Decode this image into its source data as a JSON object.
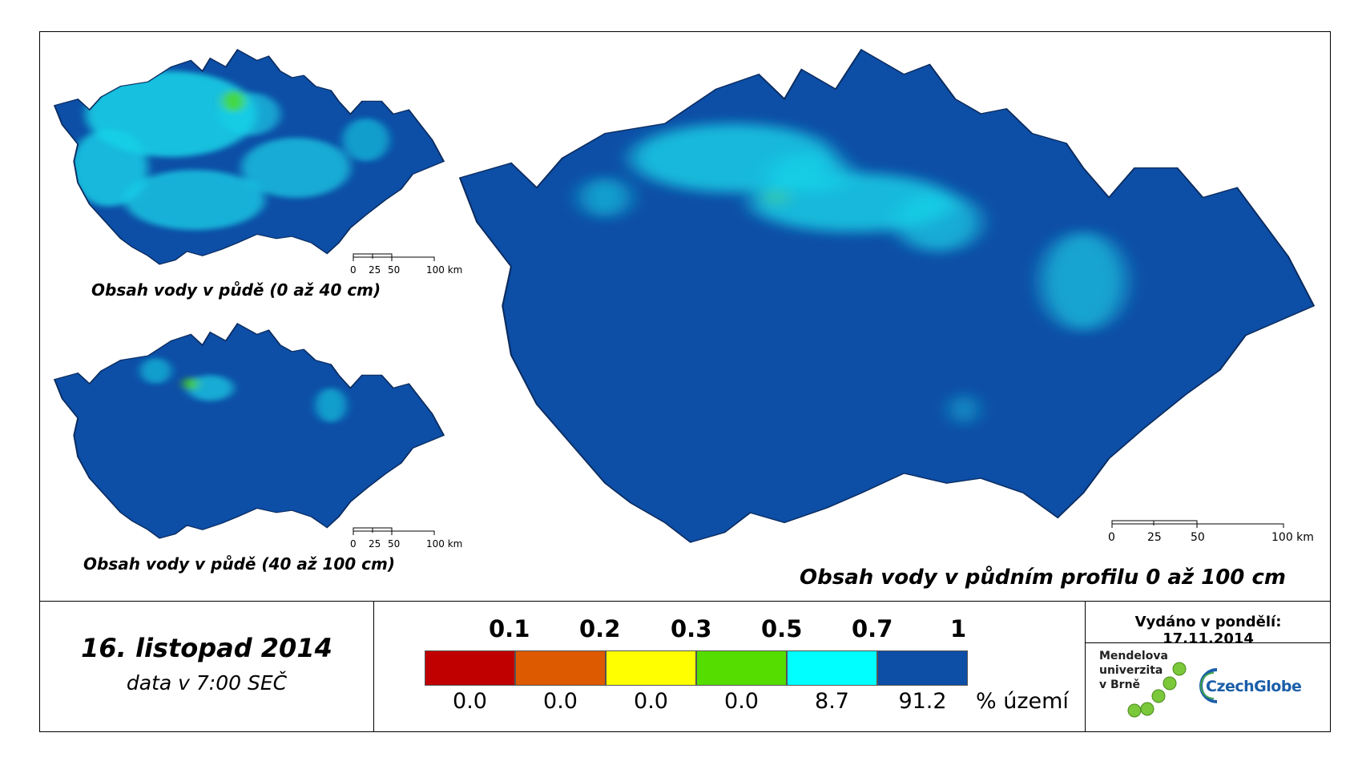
{
  "maps": {
    "top_left_title": "Obsah vody v půdě (0 až 40 cm)",
    "bottom_left_title": "Obsah vody v půdě (40 až 100 cm)",
    "main_title": "Obsah vody v půdním profilu 0 až 100 cm"
  },
  "scalebar": {
    "labels": [
      "0",
      "25",
      "50",
      "100 km"
    ]
  },
  "footer": {
    "date": "16. listopad 2014",
    "time": "data v 7:00 SEČ",
    "issued": "Vydáno v pondělí: 17.11.2014"
  },
  "legend": {
    "thresholds": [
      "0.1",
      "0.2",
      "0.3",
      "0.5",
      "0.7",
      "1"
    ],
    "colors": [
      "#c00000",
      "#dd5a00",
      "#ffff00",
      "#55dd00",
      "#00ffff",
      "#0d4ea6"
    ],
    "percentages": [
      "0.0",
      "0.0",
      "0.0",
      "0.0",
      "8.7",
      "91.2"
    ],
    "unit": "% území"
  },
  "logos": {
    "mendel_line1": "Mendelova",
    "mendel_line2": "univerzita",
    "mendel_line3": "v Brně",
    "czechglobe": "CzechGlobe"
  }
}
